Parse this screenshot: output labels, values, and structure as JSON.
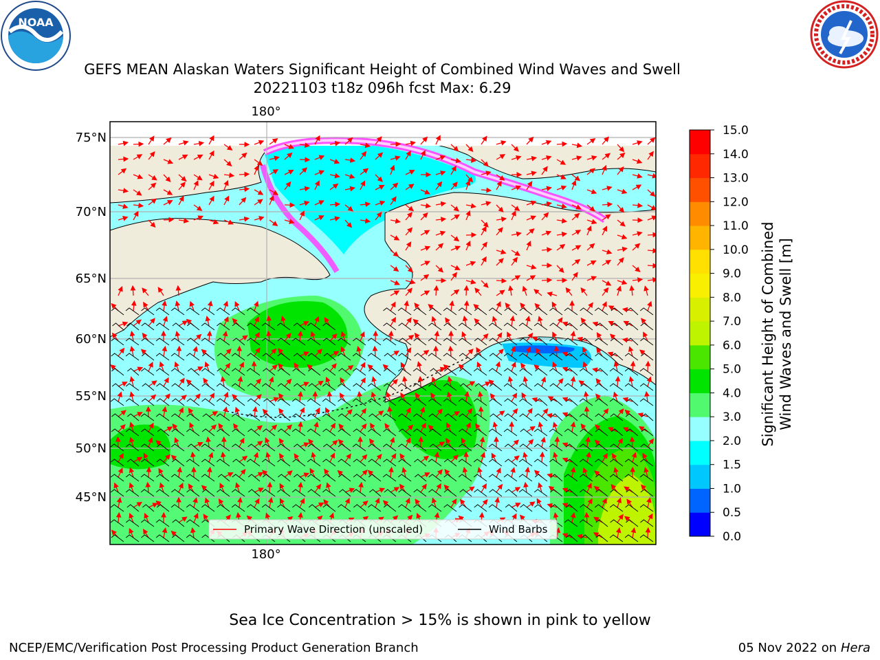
{
  "title": {
    "line1": "GEFS MEAN Alaskan Waters Significant Height of Combined Wind Waves and Swell",
    "line2": "20221103 t18z 096h fcst   Max: 6.29"
  },
  "logos": {
    "left": "noaa-logo",
    "right": "national-weather-service-logo"
  },
  "map": {
    "lat_labels": [
      "75°N",
      "70°N",
      "65°N",
      "60°N",
      "55°N",
      "50°N",
      "45°N"
    ],
    "lon_label_top": "180°",
    "lon_label_bottom": "180°",
    "legend": {
      "wave_label": "Primary Wave Direction (unscaled)",
      "barb_label": "Wind Barbs",
      "wave_color": "#ff0000",
      "barb_color": "#000000"
    },
    "land_color": "#efecdc"
  },
  "colorbar": {
    "label_line1": "Significant Height of Combined",
    "label_line2": "Wind Waves and Swell [m]",
    "ticks": [
      "0.0",
      "0.5",
      "1.0",
      "1.5",
      "2.0",
      "3.0",
      "4.0",
      "5.0",
      "6.0",
      "7.0",
      "8.0",
      "9.0",
      "10.0",
      "11.0",
      "12.0",
      "13.0",
      "14.0",
      "15.0"
    ],
    "colors": [
      "#0000ff",
      "#0064ff",
      "#00c8ff",
      "#00ffff",
      "#96ffff",
      "#50f96e",
      "#00e400",
      "#4ae600",
      "#bef400",
      "#d8ef00",
      "#f8f000",
      "#ffe000",
      "#ffb400",
      "#ff8c00",
      "#ff5000",
      "#ff2800",
      "#ff0000"
    ]
  },
  "footer": {
    "note": "Sea Ice Concentration > 15% is shown in pink to yellow",
    "branch": "NCEP/EMC/Verification Post Processing Product Generation Branch",
    "date": "05 Nov 2022 on",
    "machine": "Hera"
  }
}
